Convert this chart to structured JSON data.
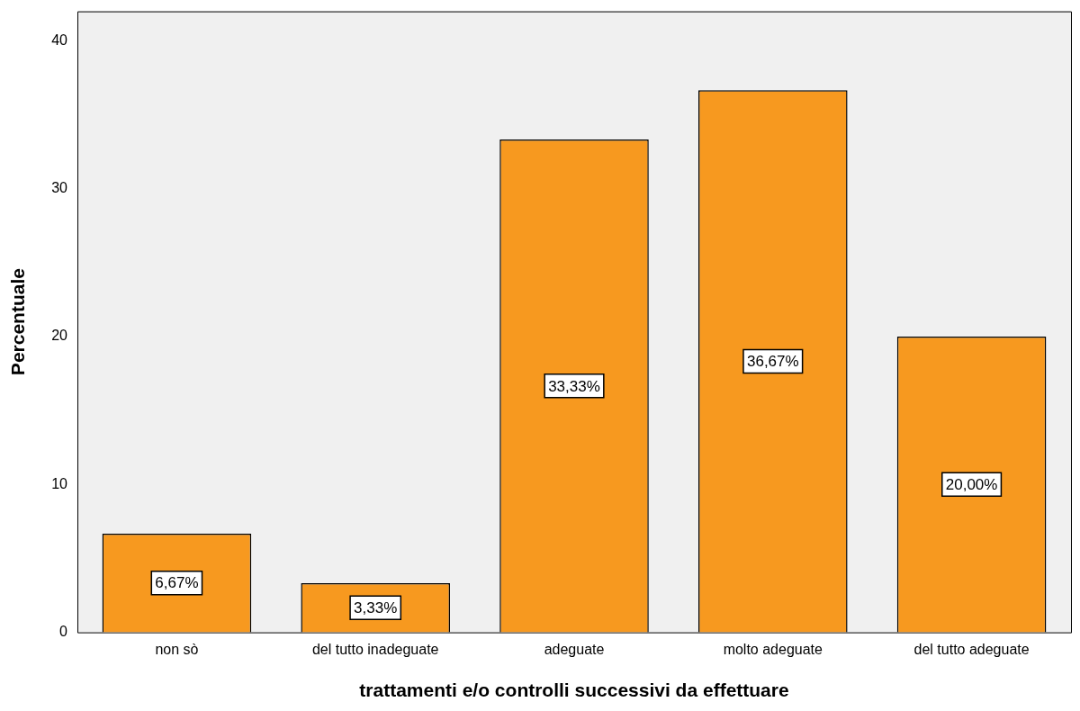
{
  "chart_data": {
    "type": "bar",
    "xlabel": "trattamenti e/o controlli successivi da effettuare",
    "ylabel": "Percentuale",
    "categories": [
      "non sò",
      "del tutto inadeguate",
      "adeguate",
      "molto adeguate",
      "del tutto adeguate"
    ],
    "values": [
      6.67,
      3.33,
      33.33,
      36.67,
      20.0
    ],
    "value_labels": [
      "6,67%",
      "3,33%",
      "33,33%",
      "36,67%",
      "20,00%"
    ],
    "color": "#f7991f",
    "ylim": [
      0,
      42
    ],
    "yticks": [
      0,
      10,
      20,
      30,
      40
    ],
    "grid": false,
    "legend": false
  }
}
